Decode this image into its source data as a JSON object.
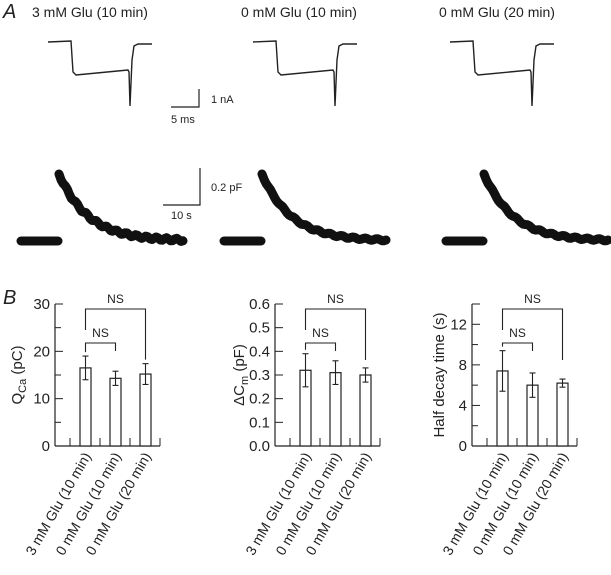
{
  "panel_a": {
    "letter": "A",
    "conditions": [
      "3 mM Glu (10 min)",
      "0 mM Glu (10 min)",
      "0 mM Glu (20 min)"
    ],
    "current_scale": {
      "y_label": "1 nA",
      "x_label": "5 ms"
    },
    "capacitance_scale": {
      "y_label": "0.2 pF",
      "x_label": "10 s"
    }
  },
  "panel_b": {
    "letter": "B",
    "significance_label": "NS"
  },
  "chart_data": [
    {
      "type": "bar",
      "title": "",
      "categories": [
        "3 mM Glu (10 min)",
        "0 mM Glu (10 min)",
        "0 mM Glu (20 min)"
      ],
      "values": [
        16.5,
        14.3,
        15.2
      ],
      "errors": [
        2.5,
        1.5,
        2.2
      ],
      "ylabel_main": "Q",
      "ylabel_sub": "Ca",
      "ylabel_unit": " (pC)",
      "ylim": [
        0,
        30
      ],
      "yticks": [
        0,
        10,
        20,
        30
      ],
      "yminor": [
        5,
        15,
        25
      ],
      "tick_labels": [
        "0",
        "10",
        "20",
        "30"
      ],
      "comparisons": [
        {
          "from": 0,
          "to": 1,
          "label": "NS"
        },
        {
          "from": 0,
          "to": 2,
          "label": "NS"
        }
      ]
    },
    {
      "type": "bar",
      "title": "",
      "categories": [
        "3 mM Glu (10 min)",
        "0 mM Glu (10 min)",
        "0 mM Glu (20 min)"
      ],
      "values": [
        0.32,
        0.31,
        0.3
      ],
      "errors": [
        0.07,
        0.05,
        0.03
      ],
      "ylabel_main": "ΔC",
      "ylabel_sub": "m",
      "ylabel_unit": " (pF)",
      "ylim": [
        0,
        0.6
      ],
      "yticks": [
        0,
        0.1,
        0.2,
        0.3,
        0.4,
        0.5,
        0.6
      ],
      "yminor": [],
      "tick_labels": [
        "0.0",
        "0.1",
        "0.2",
        "0.3",
        "0.4",
        "0.5",
        "0.6"
      ],
      "comparisons": [
        {
          "from": 0,
          "to": 1,
          "label": "NS"
        },
        {
          "from": 0,
          "to": 2,
          "label": "NS"
        }
      ]
    },
    {
      "type": "bar",
      "title": "",
      "categories": [
        "3 mM Glu (10 min)",
        "0 mM Glu (10 min)",
        "0 mM Glu (20 min)"
      ],
      "values": [
        7.4,
        6.0,
        6.2
      ],
      "errors": [
        2.0,
        1.2,
        0.4
      ],
      "ylabel_main": "Half decay time (s)",
      "ylabel_sub": "",
      "ylabel_unit": "",
      "ylim": [
        0,
        14
      ],
      "yticks": [
        0,
        4,
        8,
        12
      ],
      "yminor": [
        2,
        6,
        10,
        14
      ],
      "tick_labels": [
        "0",
        "4",
        "8",
        "12"
      ],
      "comparisons": [
        {
          "from": 0,
          "to": 1,
          "label": "NS"
        },
        {
          "from": 0,
          "to": 2,
          "label": "NS"
        }
      ]
    }
  ]
}
